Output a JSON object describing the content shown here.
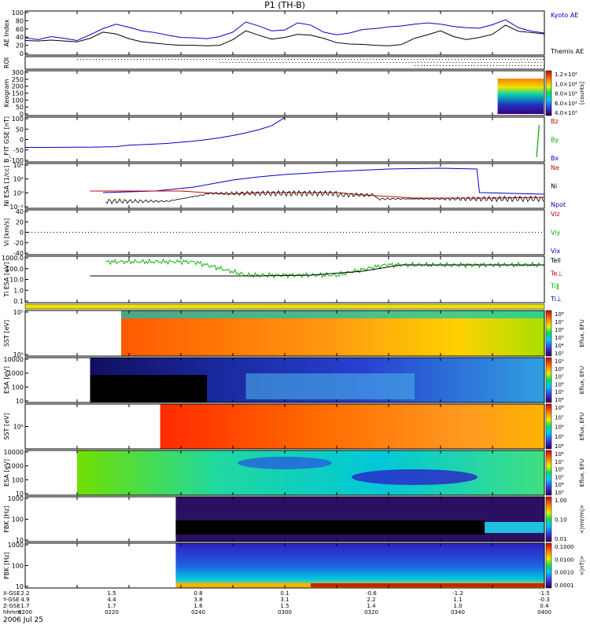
{
  "title": "P1 (TH-B)",
  "date_label": "2006 Jul 25",
  "footer": {
    "row_labels": [
      "X-GSE",
      "Y-GSE",
      "Z-GSE",
      "hhmm"
    ],
    "columns": [
      {
        "x_gse": "2.2",
        "y_gse": "4.9",
        "z_gse": "1.7",
        "hhmm": "0200"
      },
      {
        "x_gse": "1.5",
        "y_gse": "4.4",
        "z_gse": "1.7",
        "hhmm": "0220"
      },
      {
        "x_gse": "0.8",
        "y_gse": "3.8",
        "z_gse": "1.6",
        "hhmm": "0240"
      },
      {
        "x_gse": "0.1",
        "y_gse": "3.1",
        "z_gse": "1.5",
        "hhmm": "0300"
      },
      {
        "x_gse": "-0.6",
        "y_gse": "2.2",
        "z_gse": "1.4",
        "hhmm": "0320"
      },
      {
        "x_gse": "-1.2",
        "y_gse": "1.1",
        "z_gse": "1.0",
        "hhmm": "0340"
      },
      {
        "x_gse": "-1.5",
        "y_gse": "-0.3",
        "z_gse": "0.4",
        "hhmm": "0400"
      }
    ]
  },
  "colors": {
    "blue": "#0000cc",
    "red": "#cc0000",
    "green": "#00aa00",
    "black": "#000000"
  },
  "chart_data": [
    {
      "type": "line",
      "panel": "ae",
      "ylabel": "AE Index",
      "ylim": [
        0,
        100
      ],
      "ticks": [
        "100",
        "80",
        "60",
        "40",
        "20",
        "0"
      ],
      "legend": [
        "Kyoto AE",
        "Themis AE"
      ],
      "x": [
        200,
        205,
        210,
        215,
        220,
        225,
        230,
        235,
        240,
        245,
        250,
        255,
        260,
        265,
        270,
        275,
        280,
        285,
        290,
        295,
        300,
        305,
        310,
        315,
        320,
        325,
        330,
        335,
        340,
        345,
        350,
        355,
        360,
        365,
        370,
        375,
        380,
        385,
        390,
        395,
        400
      ],
      "series": [
        {
          "name": "Kyoto AE",
          "color": "blue",
          "values": [
            39,
            35,
            42,
            38,
            33,
            46,
            60,
            70,
            63,
            55,
            51,
            45,
            40,
            39,
            37,
            42,
            52,
            75,
            66,
            55,
            57,
            73,
            68,
            52,
            46,
            50,
            58,
            60,
            64,
            66,
            70,
            73,
            70,
            65,
            62,
            61,
            69,
            80,
            62,
            54,
            50
          ]
        },
        {
          "name": "Themis AE",
          "color": "black",
          "values": [
            33,
            32,
            34,
            32,
            30,
            38,
            52,
            48,
            37,
            30,
            27,
            24,
            22,
            22,
            21,
            22,
            35,
            55,
            45,
            36,
            40,
            47,
            45,
            38,
            28,
            25,
            24,
            22,
            21,
            24,
            38,
            46,
            55,
            42,
            35,
            40,
            47,
            68,
            54,
            51,
            48
          ]
        }
      ]
    },
    {
      "type": "line",
      "panel": "roi",
      "ylabel": "ROI"
    },
    {
      "type": "heatmap",
      "panel": "keogram",
      "ylabel": "Keogram",
      "ylim": [
        0,
        300
      ],
      "ticks": [
        "300",
        "250",
        "200",
        "150",
        "100",
        "50",
        "0"
      ],
      "colorbar_ticks": [
        "1.2×10⁴",
        "1.0×10⁴",
        "8.0×10³",
        "6.0×10³",
        "4.0×10³"
      ],
      "colorbar_label": "[counts]"
    },
    {
      "type": "line",
      "panel": "bfit",
      "ylabel": "B_FIT GSE [nT]",
      "ylim": [
        -100,
        100
      ],
      "ticks": [
        "100",
        "50",
        "0",
        "-50",
        "-100"
      ],
      "legend": [
        "Bz",
        "By",
        "Bx"
      ],
      "x": [
        200,
        210,
        220,
        225,
        230,
        235,
        240,
        245,
        250,
        255,
        260,
        265,
        270,
        275,
        280,
        285,
        290,
        295,
        300
      ],
      "series": [
        {
          "name": "Bx",
          "color": "blue",
          "values": [
            -35,
            -35,
            -34,
            -34,
            -33,
            -32,
            -25,
            -23,
            -20,
            -17,
            -12,
            -7,
            0,
            8,
            18,
            30,
            44,
            62,
            98
          ]
        }
      ]
    },
    {
      "type": "line",
      "panel": "ni",
      "ylabel": "Ni ESA [1/cc]",
      "ticks": [
        "10⁴",
        "10²",
        "10⁰",
        "10⁻²"
      ],
      "legend": [
        "Ne",
        "Ni",
        "Npot"
      ],
      "series": [
        {
          "name": "Ne",
          "color": "red",
          "values": []
        },
        {
          "name": "Ni",
          "color": "black",
          "values": []
        },
        {
          "name": "Npot",
          "color": "blue",
          "values": []
        }
      ]
    },
    {
      "type": "line",
      "panel": "vi",
      "ylabel": "Vi [km/s]",
      "ylim": [
        -50,
        50
      ],
      "ticks": [
        "40",
        "20",
        "0",
        "-20",
        "-40"
      ],
      "legend": [
        "Viz",
        "Viy",
        "Vix"
      ]
    },
    {
      "type": "line",
      "panel": "ti",
      "ylabel": "Ti ESA [eV]",
      "ticks": [
        "1000.0",
        "100.0",
        "10.0",
        "1.0",
        "0.1"
      ],
      "legend": [
        "Tell",
        "Te⊥",
        "Ti‖",
        "Ti⊥"
      ]
    },
    {
      "type": "heatmap",
      "panel": "sst_e",
      "ylabel": "SST [eV]",
      "ticks": [
        "10⁵",
        "10⁵"
      ],
      "colorbar_ticks": [
        "10⁸",
        "10⁷",
        "10⁶",
        "10⁵",
        "10⁴",
        "10³"
      ],
      "colorbar_label": "Eflux, EFU"
    },
    {
      "type": "heatmap",
      "panel": "esa_e",
      "ylabel": "ESA [eV]",
      "ticks": [
        "10000",
        "1000",
        "100",
        "10"
      ],
      "colorbar_ticks": [
        "10⁹",
        "10⁸",
        "10⁷",
        "10⁶",
        "10⁵",
        "10⁴"
      ],
      "colorbar_label": "Eflux, EFU"
    },
    {
      "type": "heatmap",
      "panel": "sst_i",
      "ylabel": "SST [eV]",
      "ticks": [
        "10⁵"
      ],
      "colorbar_ticks": [
        "10⁸",
        "10⁷",
        "10⁶",
        "10⁵",
        "10⁴"
      ],
      "colorbar_label": "Eflux, EFU"
    },
    {
      "type": "heatmap",
      "panel": "esa_i",
      "ylabel": "ESA [eV]",
      "ticks": [
        "10000",
        "1000",
        "100",
        "10"
      ],
      "colorbar_ticks": [
        "10⁸",
        "10⁷",
        "10⁶",
        "10⁵",
        "10⁴",
        "10³"
      ],
      "colorbar_label": "Eflux, EFU"
    },
    {
      "type": "heatmap",
      "panel": "fbk_e",
      "ylabel": "FBK [Hz]",
      "ticks": [
        "1000",
        "100",
        "10"
      ],
      "colorbar_ticks": [
        "1.00",
        "0.10",
        "0.01"
      ],
      "colorbar_label": "<|mV/m|>"
    },
    {
      "type": "heatmap",
      "panel": "fbk_b",
      "ylabel": "FBK [Hz]",
      "ticks": [
        "1000",
        "100",
        "10"
      ],
      "colorbar_ticks": [
        "0.1000",
        "0.0100",
        "0.0010",
        "0.0001"
      ],
      "colorbar_label": "<|nT|>"
    }
  ]
}
